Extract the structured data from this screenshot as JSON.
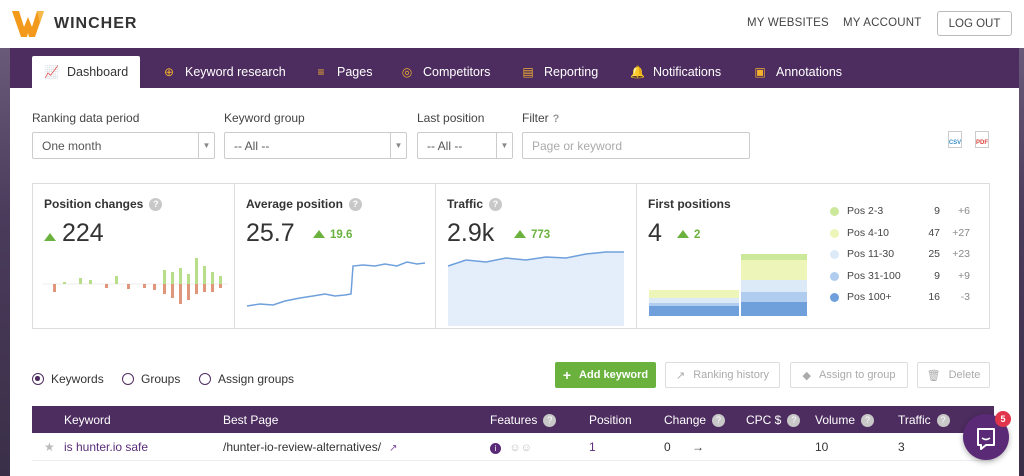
{
  "app": {
    "name": "WINCHER"
  },
  "top_links": {
    "my_websites": "MY WEBSITES",
    "my_account": "MY ACCOUNT",
    "logout": "LOG OUT"
  },
  "tabs": [
    {
      "label": "Dashboard",
      "icon": "chart-icon",
      "active": true
    },
    {
      "label": "Keyword research",
      "icon": "search-plus-icon"
    },
    {
      "label": "Pages",
      "icon": "layers-icon"
    },
    {
      "label": "Competitors",
      "icon": "target-icon"
    },
    {
      "label": "Reporting",
      "icon": "document-icon"
    },
    {
      "label": "Notifications",
      "icon": "bell-icon"
    },
    {
      "label": "Annotations",
      "icon": "note-icon"
    }
  ],
  "filters": {
    "ranking_period": {
      "label": "Ranking data period",
      "value": "One month"
    },
    "keyword_group": {
      "label": "Keyword group",
      "value": "-- All --"
    },
    "last_position": {
      "label": "Last position",
      "value": "-- All --"
    },
    "filter": {
      "label": "Filter",
      "help": "?",
      "placeholder": "Page or keyword"
    }
  },
  "export": {
    "csv": "CSV",
    "pdf": "PDF"
  },
  "stats": {
    "position_changes": {
      "title": "Position changes",
      "value": "224"
    },
    "average_position": {
      "title": "Average position",
      "value": "25.7",
      "delta": "19.6"
    },
    "traffic": {
      "title": "Traffic",
      "value": "2.9k",
      "delta": "773"
    },
    "first_positions": {
      "title": "First positions",
      "value": "4",
      "delta": "2"
    }
  },
  "positions_legend": [
    {
      "name": "Pos 2-3",
      "value": "9",
      "change": "+6",
      "color": "#cce89a"
    },
    {
      "name": "Pos 4-10",
      "value": "47",
      "change": "+27",
      "color": "#eef5b8"
    },
    {
      "name": "Pos 11-30",
      "value": "25",
      "change": "+23",
      "color": "#dceaf8"
    },
    {
      "name": "Pos 31-100",
      "value": "9",
      "change": "+9",
      "color": "#b0cdef"
    },
    {
      "name": "Pos 100+",
      "value": "16",
      "change": "-3",
      "color": "#6fa0dc"
    }
  ],
  "view_options": {
    "keywords": "Keywords",
    "groups": "Groups",
    "assign_groups": "Assign groups"
  },
  "actions": {
    "add_keyword": "Add keyword",
    "ranking_history": "Ranking history",
    "assign_to_group": "Assign to group",
    "delete": "Delete"
  },
  "table": {
    "headers": {
      "keyword": "Keyword",
      "best_page": "Best Page",
      "features": "Features",
      "position": "Position",
      "change": "Change",
      "cpc": "CPC $",
      "volume": "Volume",
      "traffic": "Traffic"
    },
    "rows": [
      {
        "keyword": "is hunter.io safe",
        "best_page": "/hunter-io-review-alternatives/",
        "position": "1",
        "change": "0",
        "volume": "10",
        "traffic": "3"
      }
    ]
  },
  "chat": {
    "badge": "5"
  }
}
